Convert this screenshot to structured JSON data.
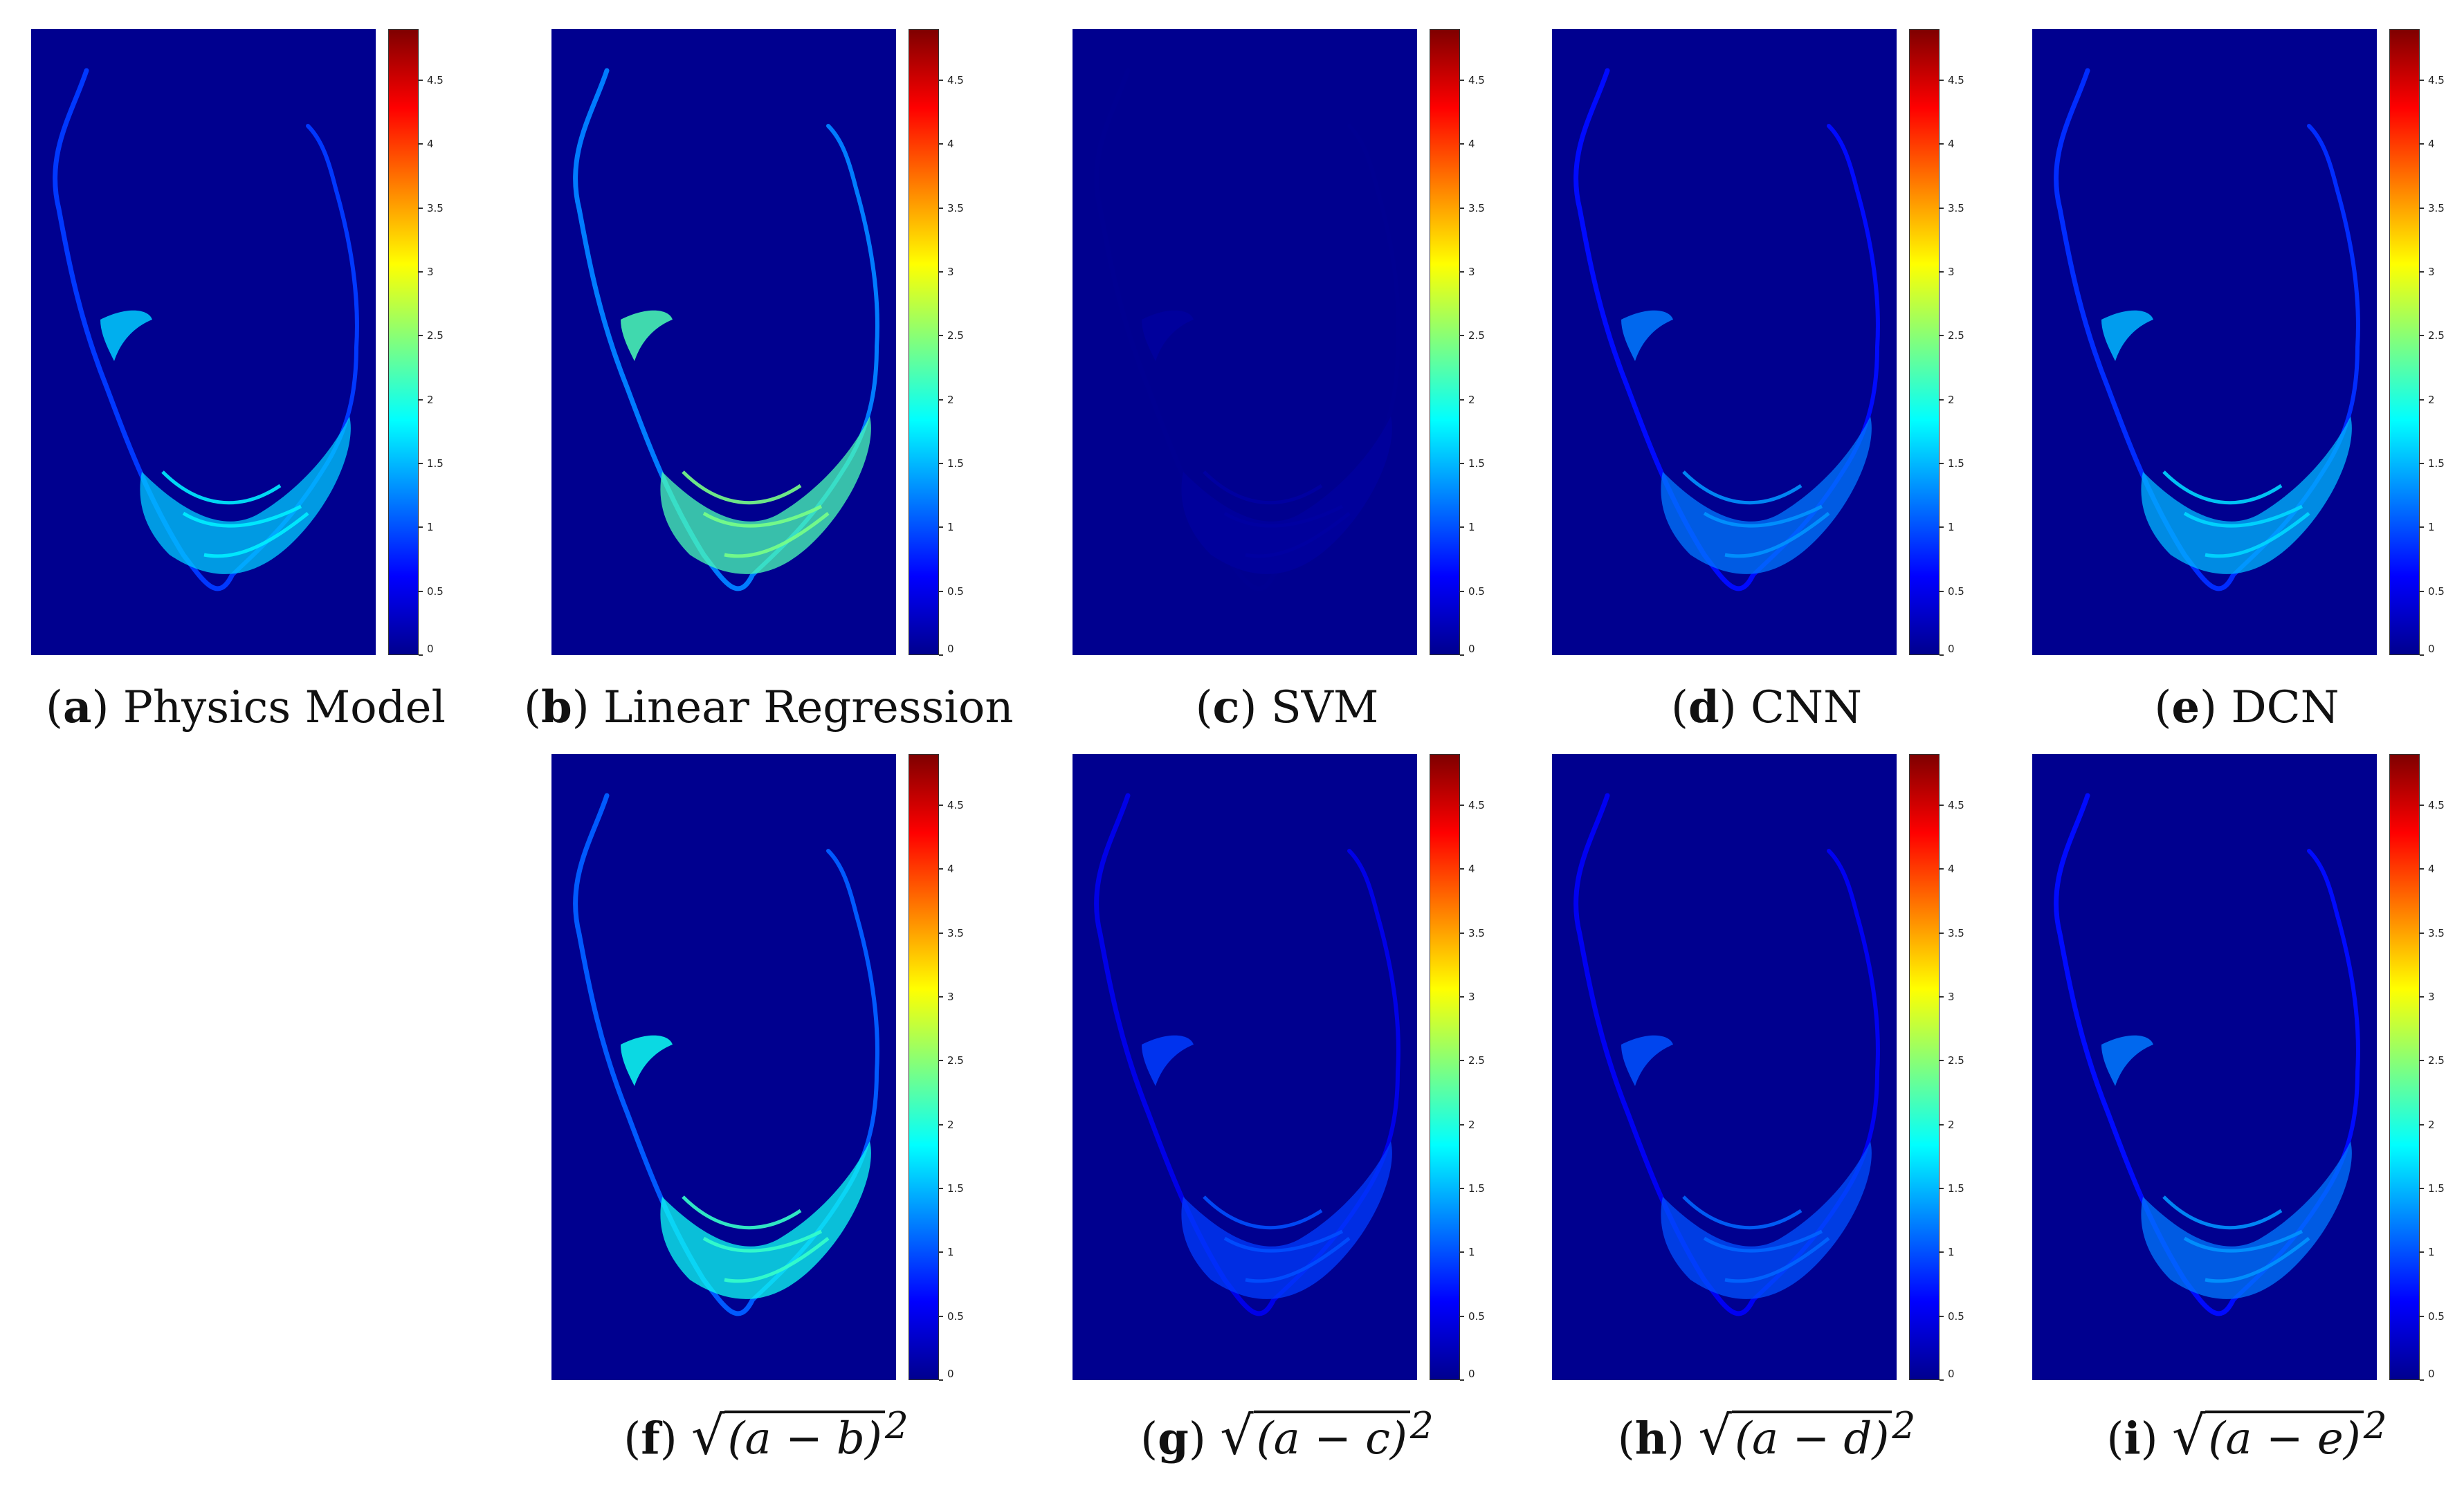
{
  "figure": {
    "panels": [
      {
        "id": "a",
        "caption": "Physics Model",
        "caption_kind": "text"
      },
      {
        "id": "b",
        "caption": "Linear Regression",
        "caption_kind": "text"
      },
      {
        "id": "c",
        "caption": "SVM",
        "caption_kind": "text"
      },
      {
        "id": "d",
        "caption": "CNN",
        "caption_kind": "text"
      },
      {
        "id": "e",
        "caption": "DCN",
        "caption_kind": "text"
      },
      {
        "id": "f",
        "caption_sym": "√",
        "caption_radicand": "(a − b)",
        "caption_exp": "2",
        "caption_kind": "math"
      },
      {
        "id": "g",
        "caption_sym": "√",
        "caption_radicand": "(a − c)",
        "caption_exp": "2",
        "caption_kind": "math"
      },
      {
        "id": "h",
        "caption_sym": "√",
        "caption_radicand": "(a − d)",
        "caption_exp": "2",
        "caption_kind": "math"
      },
      {
        "id": "i",
        "caption_sym": "√",
        "caption_radicand": "(a − e)",
        "caption_exp": "2",
        "caption_kind": "math"
      }
    ]
  },
  "chart_data": {
    "type": "heatmap",
    "title": "",
    "colormap": "jet",
    "colorbar": {
      "range": [
        0,
        4.9
      ],
      "ticks": [
        0,
        0.5,
        1,
        1.5,
        2,
        2.5,
        3,
        3.5,
        4,
        4.5
      ],
      "tick_labels": [
        "0",
        "0.5",
        "1",
        "1.5",
        "2",
        "2.5",
        "3",
        "3.5",
        "4",
        "4.5"
      ]
    },
    "background_value": 0,
    "panel_intensity": {
      "a": 1.6,
      "b": 2.2,
      "c": 0.15,
      "d": 1.2,
      "e": 1.5,
      "f": 1.9,
      "g": 0.9,
      "h": 1.0,
      "i": 1.2
    },
    "colors": {
      "background": "#00008f",
      "outline_low": "#1030d0",
      "outline_mid": "#20b0ff",
      "outline_high": "#60ffd0"
    }
  }
}
